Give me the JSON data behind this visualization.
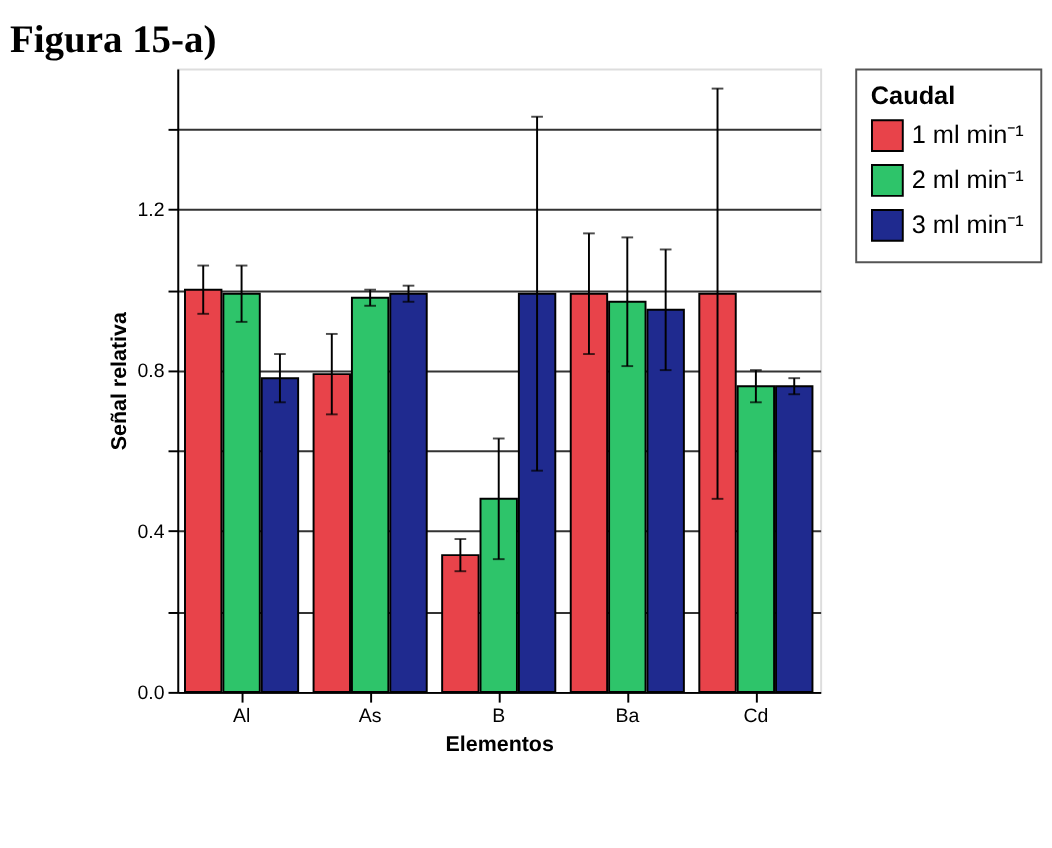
{
  "chart_data": {
    "type": "bar",
    "title": "Figura 15-a)",
    "xlabel": "Elementos",
    "ylabel": "Señal relativa",
    "legend_title": "Caudal",
    "categories": [
      "Al",
      "As",
      "B",
      "Ba",
      "Cd"
    ],
    "series": [
      {
        "name": "1 ml min⁻¹",
        "color": "#e8434a",
        "values": [
          1.0,
          0.79,
          0.34,
          0.99,
          0.99
        ],
        "errors": [
          0.06,
          0.1,
          0.04,
          0.15,
          0.51
        ]
      },
      {
        "name": "2 ml min⁻¹",
        "color": "#2ec46a",
        "values": [
          0.99,
          0.98,
          0.48,
          0.97,
          0.76
        ],
        "errors": [
          0.07,
          0.02,
          0.15,
          0.16,
          0.04
        ]
      },
      {
        "name": "3 ml min⁻¹",
        "color": "#1f2a8f",
        "values": [
          0.78,
          0.99,
          0.99,
          0.95,
          0.76
        ],
        "errors": [
          0.06,
          0.02,
          0.44,
          0.15,
          0.02
        ]
      }
    ],
    "ylim": [
      0,
      1.55
    ],
    "yticks": [
      {
        "value": 0,
        "label": "0.0"
      },
      {
        "value": 0.2,
        "label": null
      },
      {
        "value": 0.4,
        "label": "0.4"
      },
      {
        "value": 0.6,
        "label": null
      },
      {
        "value": 0.8,
        "label": "0.8"
      },
      {
        "value": 1.0,
        "label": null
      },
      {
        "value": 1.2,
        "label": "1.2"
      },
      {
        "value": 1.4,
        "label": null
      }
    ],
    "grid": "y",
    "legend": "top right"
  }
}
